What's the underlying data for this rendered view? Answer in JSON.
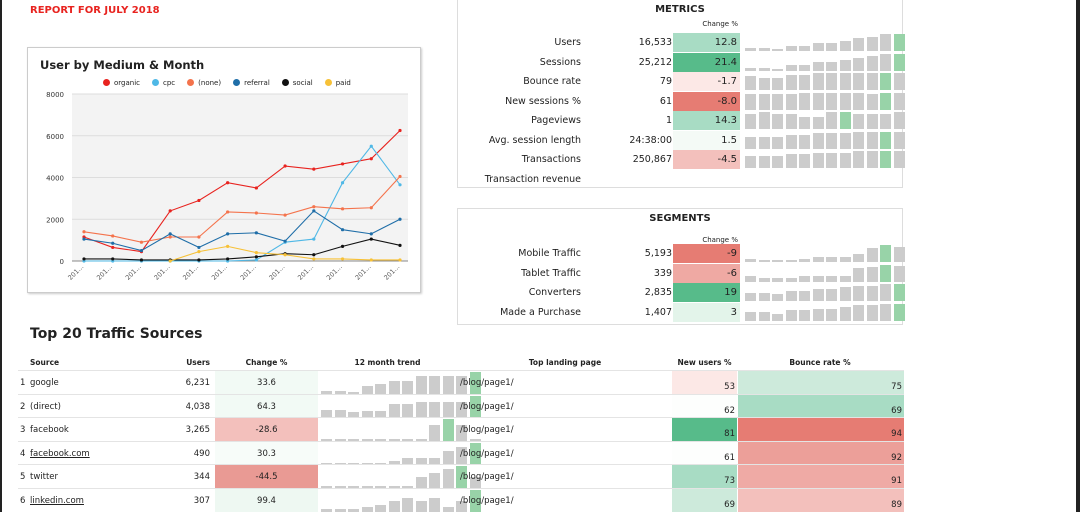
{
  "report_title": "REPORT FOR JULY 2018",
  "colors": {
    "strong_green": "#57bb8a",
    "green": "#a8dcc4",
    "light_green": "#d3ede0",
    "faint_green": "#eef8f2",
    "red": "#e67c73",
    "pink": "#efa9a3",
    "light_pink": "#f3c0bc",
    "faint_pink": "#fce8e6",
    "spark_bar": "#cccccc",
    "spark_highlight": "#98d3a8"
  },
  "chart_data": {
    "type": "line",
    "title": "User by Medium & Month",
    "ylim": [
      0,
      8000
    ],
    "yticks": [
      0,
      2000,
      4000,
      6000,
      8000
    ],
    "xticklabels": [
      "201…",
      "201…",
      "201…",
      "201…",
      "201…",
      "201…",
      "201…",
      "201…",
      "201…",
      "201…",
      "201…",
      "201…"
    ],
    "legend_placement": "top",
    "grid": true,
    "series": [
      {
        "name": "organic",
        "color": "#e8231f",
        "values": [
          1150,
          650,
          450,
          2400,
          2900,
          3750,
          3500,
          4550,
          4400,
          4650,
          4900,
          6250
        ]
      },
      {
        "name": "cpc",
        "color": "#4fb8e6",
        "values": [
          0,
          0,
          0,
          0,
          0,
          0,
          50,
          900,
          1050,
          3750,
          5500,
          3650
        ]
      },
      {
        "name": "(none)",
        "color": "#f4734c",
        "values": [
          1400,
          1200,
          900,
          1150,
          1150,
          2350,
          2300,
          2200,
          2600,
          2500,
          2550,
          4050
        ]
      },
      {
        "name": "referral",
        "color": "#1f6ea8",
        "values": [
          1050,
          850,
          500,
          1300,
          650,
          1300,
          1350,
          950,
          2400,
          1500,
          1300,
          2000
        ]
      },
      {
        "name": "social",
        "color": "#111111",
        "values": [
          100,
          100,
          50,
          50,
          50,
          100,
          200,
          350,
          300,
          700,
          1050,
          750
        ]
      },
      {
        "name": "paid",
        "color": "#f7c137",
        "values": [
          null,
          null,
          null,
          0,
          450,
          700,
          400,
          300,
          100,
          100,
          50,
          50
        ]
      }
    ]
  },
  "metrics": {
    "title": "METRICS",
    "change_header": "Change %",
    "rows": [
      {
        "label": "Users",
        "value": "16,533",
        "change": "12.8",
        "color": "#a8dcc4",
        "trend": [
          0.15,
          0.15,
          0.1,
          0.3,
          0.3,
          0.5,
          0.5,
          0.6,
          0.75,
          0.85,
          1,
          1
        ],
        "hl": 11
      },
      {
        "label": "Sessions",
        "value": "25,212",
        "change": "21.4",
        "color": "#57bb8a",
        "trend": [
          0.15,
          0.15,
          0.1,
          0.3,
          0.3,
          0.5,
          0.5,
          0.6,
          0.75,
          0.85,
          1,
          1
        ],
        "hl": 11
      },
      {
        "label": "Bounce rate",
        "value": "79",
        "change": "-1.7",
        "color": "#fce8e6",
        "trend": [
          0.8,
          0.7,
          0.7,
          0.9,
          0.9,
          1,
          1,
          1,
          1,
          1,
          1,
          1
        ],
        "hl": 10
      },
      {
        "label": "New sessions %",
        "value": "61",
        "change": "-8.0",
        "color": "#e67c73",
        "trend": [
          0.9,
          0.9,
          0.9,
          0.9,
          1,
          1,
          1,
          1,
          1,
          0.9,
          1,
          1
        ],
        "hl": 10
      },
      {
        "label": "Pageviews",
        "value": "1",
        "change": "14.3",
        "color": "#a8dcc4",
        "trend": [
          0.9,
          1,
          0.9,
          0.9,
          0.7,
          0.7,
          1,
          1,
          0.9,
          0.9,
          0.9,
          1
        ],
        "hl": 7
      },
      {
        "label": "Avg. session length",
        "value": "24:38:00",
        "change": "1.5",
        "color": "#f4faf6",
        "trend": [
          0.7,
          0.7,
          0.7,
          0.8,
          0.8,
          0.9,
          0.9,
          0.9,
          1,
          1,
          1,
          1
        ],
        "hl": 10
      },
      {
        "label": "Transactions",
        "value": "250,867",
        "change": "-4.5",
        "color": "#f3c0bc",
        "trend": [
          0.7,
          0.7,
          0.7,
          0.8,
          0.8,
          0.9,
          0.9,
          0.9,
          1,
          1,
          1,
          1
        ],
        "hl": 10
      },
      {
        "label": "Transaction revenue",
        "value": "",
        "change": "",
        "color": "",
        "trend": [],
        "hl": -1
      }
    ]
  },
  "segments": {
    "title": "SEGMENTS",
    "change_header": "Change %",
    "rows": [
      {
        "label": "Mobile Traffic",
        "value": "5,193",
        "change": "-9",
        "color": "#e67c73",
        "trend": [
          0.2,
          0.1,
          0.1,
          0.1,
          0.2,
          0.3,
          0.3,
          0.3,
          0.5,
          0.8,
          1,
          0.9
        ],
        "hl": 10
      },
      {
        "label": "Tablet Traffic",
        "value": "339",
        "change": "-6",
        "color": "#efa9a3",
        "trend": [
          0.3,
          0.2,
          0.2,
          0.2,
          0.3,
          0.3,
          0.3,
          0.3,
          0.8,
          0.85,
          1,
          0.9
        ],
        "hl": 10
      },
      {
        "label": "Converters",
        "value": "2,835",
        "change": "19",
        "color": "#57bb8a",
        "trend": [
          0.5,
          0.5,
          0.4,
          0.6,
          0.6,
          0.7,
          0.7,
          0.8,
          0.9,
          0.9,
          1,
          1
        ],
        "hl": 11
      },
      {
        "label": "Made a Purchase",
        "value": "1,407",
        "change": "3",
        "color": "#e3f4ea",
        "trend": [
          0.5,
          0.5,
          0.4,
          0.6,
          0.6,
          0.7,
          0.7,
          0.8,
          0.9,
          0.9,
          1,
          1
        ],
        "hl": 11
      }
    ]
  },
  "sources": {
    "title": "Top 20 Traffic Sources",
    "headers": {
      "source": "Source",
      "users": "Users",
      "change": "Change %",
      "trend": "12 month trend",
      "landing": "Top landing page",
      "new_users": "New users %",
      "bounce": "Bounce rate %"
    },
    "rows": [
      {
        "n": "1",
        "source": "google",
        "link": false,
        "users": "6,231",
        "change": "33.6",
        "change_color": "#f2faf5",
        "trend": [
          0.15,
          0.15,
          0.1,
          0.35,
          0.45,
          0.6,
          0.6,
          0.8,
          0.8,
          0.8,
          0.8,
          1
        ],
        "hl": 11,
        "landing": "/blog/page1/",
        "new_users": "53",
        "nu_color": "#fce8e6",
        "bounce": "75",
        "br_color": "#cdeadb"
      },
      {
        "n": "2",
        "source": "(direct)",
        "link": false,
        "users": "4,038",
        "change": "64.3",
        "change_color": "#f2faf5",
        "trend": [
          0.35,
          0.35,
          0.25,
          0.3,
          0.3,
          0.6,
          0.6,
          0.7,
          0.7,
          0.7,
          0.7,
          1
        ],
        "hl": 11,
        "landing": "/blog/page1/",
        "new_users": "62",
        "nu_color": "#fdfefd",
        "bounce": "69",
        "br_color": "#a8dcc4"
      },
      {
        "n": "3",
        "source": "facebook",
        "link": false,
        "users": "3,265",
        "change": "-28.6",
        "change_color": "#f3c0bc",
        "trend": [
          0,
          0.05,
          0.1,
          0.1,
          0.05,
          0.1,
          0.1,
          0.1,
          0.75,
          1,
          0.75,
          0
        ],
        "hl": 9,
        "landing": "/blog/page1/",
        "new_users": "81",
        "nu_color": "#57bb8a",
        "bounce": "94",
        "br_color": "#e67c73"
      },
      {
        "n": "4",
        "source": "facebook.com",
        "link": true,
        "users": "490",
        "change": "30.3",
        "change_color": "#f7fcf9",
        "trend": [
          0.05,
          0.05,
          0.05,
          0.05,
          0.05,
          0.15,
          0.3,
          0.3,
          0.3,
          0.6,
          0.8,
          1
        ],
        "hl": 11,
        "landing": "/blog/page1/",
        "new_users": "61",
        "nu_color": "#fdfefd",
        "bounce": "92",
        "br_color": "#ec9f99"
      },
      {
        "n": "5",
        "source": "twitter",
        "link": false,
        "users": "344",
        "change": "-44.5",
        "change_color": "#e99a94",
        "trend": [
          0,
          0,
          0,
          0,
          0,
          0.05,
          0.1,
          0.5,
          0.7,
          0.85,
          1,
          0.5
        ],
        "hl": 10,
        "landing": "/blog/page1/",
        "new_users": "73",
        "nu_color": "#a8dcc4",
        "bounce": "91",
        "br_color": "#efaaa5"
      },
      {
        "n": "6",
        "source": "linkedin.com",
        "link": true,
        "users": "307",
        "change": "99.4",
        "change_color": "#eef8f2",
        "trend": [
          0.1,
          0.1,
          0.1,
          0.2,
          0.3,
          0.5,
          0.6,
          0.5,
          0.6,
          0.2,
          0.5,
          1
        ],
        "hl": 11,
        "landing": "/blog/page1/",
        "new_users": "69",
        "nu_color": "#cdeadb",
        "bounce": "89",
        "br_color": "#f3c0bc"
      }
    ]
  }
}
